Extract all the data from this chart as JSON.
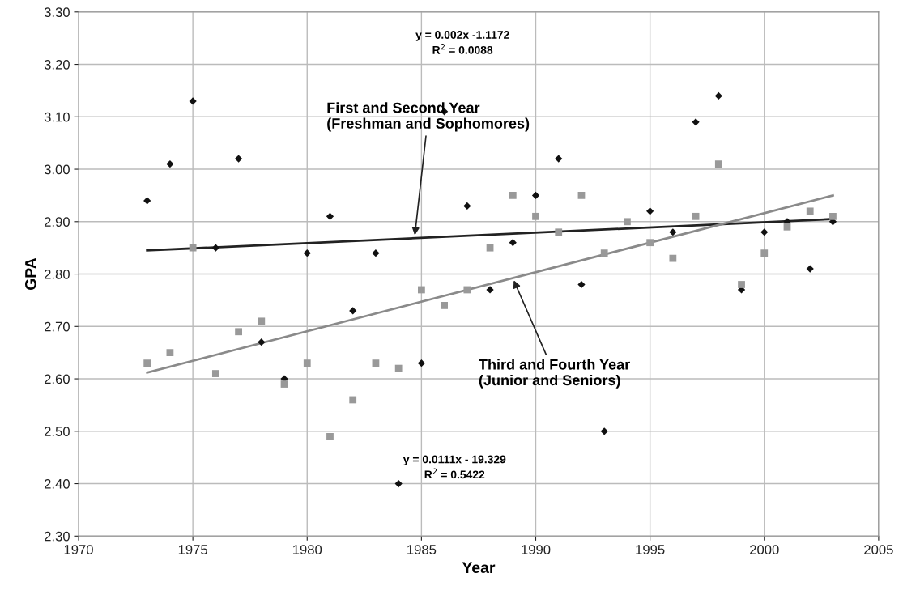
{
  "chart_data": {
    "type": "scatter",
    "xlabel": "Year",
    "ylabel": "GPA",
    "xlim": [
      1970,
      2005
    ],
    "xticks": [
      1970,
      1975,
      1980,
      1985,
      1990,
      1995,
      2000,
      2005
    ],
    "ylim": [
      2.3,
      3.3
    ],
    "yticks": [
      {
        "value": 2.3,
        "label": "2.30"
      },
      {
        "value": 2.4,
        "label": "2.40"
      },
      {
        "value": 2.5,
        "label": "2.50"
      },
      {
        "value": 2.6,
        "label": "2.60"
      },
      {
        "value": 2.7,
        "label": "2.70"
      },
      {
        "value": 2.8,
        "label": "2.80"
      },
      {
        "value": 2.9,
        "label": "2.90"
      },
      {
        "value": 3.0,
        "label": "3.00"
      },
      {
        "value": 3.1,
        "label": "3.10"
      },
      {
        "value": 3.2,
        "label": "3.20"
      },
      {
        "value": 3.3,
        "label": "3.30"
      }
    ],
    "grid": true,
    "series": [
      {
        "marker": "diamond",
        "color": "#111111",
        "x": [
          1973,
          1974,
          1975,
          1976,
          1977,
          1978,
          1979,
          1980,
          1981,
          1982,
          1983,
          1984,
          1985,
          1986,
          1987,
          1988,
          1989,
          1990,
          1991,
          1992,
          1993,
          1994,
          1995,
          1996,
          1997,
          1998,
          1999,
          2000,
          2001,
          2002,
          2003
        ],
        "values": [
          2.94,
          3.01,
          3.13,
          2.85,
          3.02,
          2.67,
          2.6,
          2.84,
          2.91,
          2.73,
          2.84,
          2.4,
          2.63,
          3.11,
          2.93,
          2.77,
          2.86,
          2.95,
          3.02,
          2.78,
          2.5,
          null,
          2.92,
          2.88,
          3.09,
          3.14,
          2.77,
          2.88,
          2.9,
          2.81,
          2.9
        ]
      },
      {
        "marker": "square",
        "color": "#999999",
        "x": [
          1973,
          1974,
          1975,
          1976,
          1977,
          1978,
          1979,
          1980,
          1981,
          1982,
          1983,
          1984,
          1985,
          1986,
          1987,
          1988,
          1989,
          1990,
          1991,
          1992,
          1993,
          1994,
          1995,
          1996,
          1997,
          1998,
          1999,
          2000,
          2001,
          2002,
          2003
        ],
        "values": [
          2.63,
          2.65,
          2.85,
          2.61,
          2.69,
          2.71,
          2.59,
          2.63,
          2.49,
          2.56,
          2.63,
          2.62,
          2.77,
          2.74,
          2.77,
          2.85,
          2.95,
          2.91,
          2.88,
          2.95,
          2.84,
          2.9,
          2.86,
          2.83,
          2.91,
          3.01,
          2.78,
          2.84,
          2.89,
          2.92,
          2.91
        ]
      },
      {
        "type": "line",
        "color": "#222222",
        "x": [
          1973,
          2003
        ],
        "values": [
          2.845,
          2.905
        ]
      },
      {
        "type": "line",
        "color": "#8a8a8a",
        "x": [
          1973,
          2003
        ],
        "values": [
          2.612,
          2.95
        ]
      }
    ],
    "annotations": [
      {
        "text": "First and Second Year\n(Freshman and Sophomores)",
        "x": 1984.7,
        "y": 2.87
      },
      {
        "text": "Third and Fourth Year\n(Junior and Seniors)",
        "x": 1989,
        "y": 2.792
      },
      "y = 0.002x -1.1172\nR$^{2}$ = 0.0088",
      "y = 0.0111x - 19.329\nR$^{2}$ = 0.5422"
    ]
  }
}
